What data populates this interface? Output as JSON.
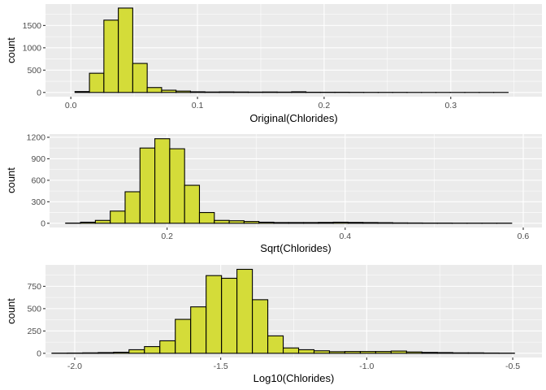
{
  "colors": {
    "panel_bg": "#ebebeb",
    "grid_major": "#ffffff",
    "bar_fill": "#d4dc39",
    "bar_stroke": "#000000",
    "tick_text": "#4d4d4d"
  },
  "chart_data": [
    {
      "type": "bar",
      "title": "",
      "xlabel": "Original(Chlorides)",
      "ylabel": "count",
      "xlim": [
        -0.02,
        0.372
      ],
      "ylim": [
        -95,
        1980
      ],
      "x_ticks": [
        0.0,
        0.1,
        0.2,
        0.3
      ],
      "x_tick_labels": [
        "0.0",
        "0.1",
        "0.2",
        "0.3"
      ],
      "y_ticks": [
        0,
        500,
        1000,
        1500
      ],
      "y_tick_labels": [
        "0",
        "500",
        "1000",
        "1500"
      ],
      "bin_width": 0.0114,
      "bin_centers": [
        0.009,
        0.0204,
        0.0318,
        0.0432,
        0.0546,
        0.066,
        0.0774,
        0.0888,
        0.1002,
        0.1116,
        0.123,
        0.1344,
        0.1458,
        0.1572,
        0.1686,
        0.18,
        0.1914,
        0.2028,
        0.2142,
        0.2256,
        0.237,
        0.2484,
        0.2598,
        0.2712,
        0.2826,
        0.294,
        0.3054,
        0.3168,
        0.3282,
        0.3396
      ],
      "values": [
        20,
        430,
        1620,
        1890,
        650,
        110,
        50,
        30,
        15,
        10,
        12,
        10,
        8,
        10,
        8,
        15,
        5,
        5,
        5,
        3,
        2,
        2,
        2,
        1,
        1,
        1,
        1,
        1,
        1,
        1
      ]
    },
    {
      "type": "bar",
      "title": "",
      "xlabel": "Sqrt(Chlorides)",
      "ylabel": "count",
      "xlim": [
        0.068,
        0.621
      ],
      "ylim": [
        -59,
        1245
      ],
      "x_ticks": [
        0.2,
        0.4,
        0.6
      ],
      "x_tick_labels": [
        "0.2",
        "0.4",
        "0.6"
      ],
      "y_ticks": [
        0,
        300,
        600,
        900,
        1200
      ],
      "y_tick_labels": [
        "0",
        "300",
        "600",
        "900",
        "1200"
      ],
      "bin_width": 0.0167,
      "bin_centers": [
        0.0944,
        0.1111,
        0.1278,
        0.1445,
        0.1612,
        0.1779,
        0.1946,
        0.2113,
        0.228,
        0.2447,
        0.2614,
        0.2781,
        0.2948,
        0.3115,
        0.3282,
        0.3449,
        0.3616,
        0.3783,
        0.395,
        0.4117,
        0.4284,
        0.4451,
        0.4618,
        0.4785,
        0.4952,
        0.5119,
        0.5286,
        0.5453,
        0.562,
        0.5787
      ],
      "values": [
        3,
        15,
        40,
        170,
        440,
        1050,
        1180,
        1040,
        530,
        150,
        40,
        35,
        25,
        15,
        10,
        10,
        10,
        12,
        15,
        12,
        10,
        8,
        5,
        4,
        3,
        3,
        2,
        2,
        2,
        2
      ]
    },
    {
      "type": "bar",
      "title": "",
      "xlabel": "Log10(Chlorides)",
      "ylabel": "count",
      "xlim": [
        -2.1,
        -0.4
      ],
      "ylim": [
        -47,
        990
      ],
      "x_ticks": [
        -2.0,
        -1.5,
        -1.0,
        -0.5
      ],
      "x_tick_labels": [
        "-2.0",
        "-1.5",
        "-1.0",
        "-0.5"
      ],
      "y_ticks": [
        0,
        250,
        500,
        750
      ],
      "y_tick_labels": [
        "0",
        "250",
        "500",
        "750"
      ],
      "bin_width": 0.0528,
      "bin_centers": [
        -2.0516,
        -1.9988,
        -1.946,
        -1.8932,
        -1.8404,
        -1.7876,
        -1.7348,
        -1.682,
        -1.6292,
        -1.5764,
        -1.5236,
        -1.4708,
        -1.418,
        -1.3652,
        -1.3124,
        -1.2596,
        -1.2068,
        -1.154,
        -1.1012,
        -1.0484,
        -0.9956,
        -0.9428,
        -0.89,
        -0.8372,
        -0.7844,
        -0.7316,
        -0.6788,
        -0.626,
        -0.5732,
        -0.5204
      ],
      "values": [
        2,
        3,
        5,
        8,
        12,
        40,
        75,
        140,
        380,
        520,
        870,
        840,
        940,
        600,
        195,
        60,
        40,
        28,
        18,
        20,
        20,
        20,
        25,
        15,
        10,
        8,
        5,
        5,
        3,
        2
      ]
    }
  ]
}
